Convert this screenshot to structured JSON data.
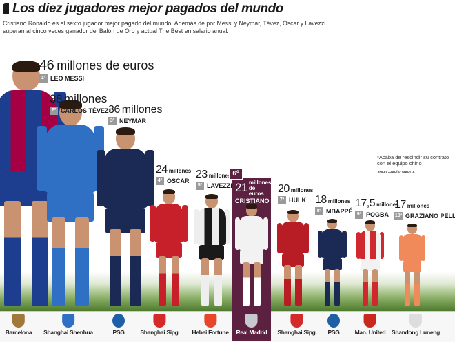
{
  "header": {
    "title": "Los diez jugadores mejor pagados del mundo",
    "intro": "Cristiano Ronaldo es el sexto jugador mejor pagado del mundo. Además de por Messi y Neymar, Tévez, Óscar y Lavezzi superan al cinco veces ganador del Balón de Oro y actual The Best en salario anual."
  },
  "note": "*Acaba de rescindir su contrato con el equipo chino",
  "credit": "INFOGRAFÍA: MARCA",
  "highlight_color": "#5c2140",
  "players": [
    {
      "rank": "1º",
      "value": "46",
      "unit": "millones de euros",
      "name": "LEO MESSI",
      "club": "Barcelona",
      "salary_millions_eur": 46,
      "kit": "#1d3d8f",
      "kit2": "#a50044",
      "club_color": "#a0783a"
    },
    {
      "rank": "2º",
      "value": "38",
      "unit": "millones",
      "name": "CARLOS TÉVEZ*",
      "club": "Shanghai Shenhua",
      "salary_millions_eur": 38,
      "kit": "#2f6fc4",
      "kit2": "#2f6fc4",
      "club_color": "#2f6fc4"
    },
    {
      "rank": "3º",
      "value": "36",
      "unit": "millones",
      "name": "NEYMAR",
      "club": "PSG",
      "salary_millions_eur": 36,
      "kit": "#1b2a55",
      "kit2": "#1b2a55",
      "club_color": "#1f5fa8"
    },
    {
      "rank": "4º",
      "value": "24",
      "unit": "millones",
      "name": "ÓSCAR",
      "club": "Shanghai Sipg",
      "salary_millions_eur": 24,
      "kit": "#c8202b",
      "kit2": "#c8202b",
      "club_color": "#d42a2a"
    },
    {
      "rank": "5º",
      "value": "23",
      "unit": "millones",
      "name": "LAVEZZI",
      "club": "Hebei Fortune",
      "salary_millions_eur": 23,
      "kit": "#eeeeee",
      "kit2": "#1a1a1a",
      "club_color": "#e8462a"
    },
    {
      "rank": "6º",
      "value": "21",
      "unit": "millones de euros",
      "name": "CRISTIANO",
      "club": "Real Madrid",
      "salary_millions_eur": 21,
      "kit": "#f2f2f2",
      "kit2": "#f2f2f2",
      "club_color": "#c8c8d0"
    },
    {
      "rank": "7º",
      "value": "20",
      "unit": "millones",
      "name": "HULK",
      "club": "Shanghai Sipg",
      "salary_millions_eur": 20,
      "kit": "#b81c24",
      "kit2": "#b81c24",
      "club_color": "#d42a2a"
    },
    {
      "rank": "8º",
      "value": "18",
      "unit": "millones",
      "name": "MBAPPÉ",
      "club": "PSG",
      "salary_millions_eur": 18,
      "kit": "#1b2a55",
      "kit2": "#1b2a55",
      "club_color": "#1f5fa8"
    },
    {
      "rank": "9º",
      "value": "17,5",
      "unit": "millones",
      "name": "POGBA",
      "club": "Man. United",
      "salary_millions_eur": 17.5,
      "kit": "#d0282e",
      "kit2": "#f2f2f2",
      "club_color": "#c8281e"
    },
    {
      "rank": "10º",
      "value": "17",
      "unit": "millones",
      "name": "GRAZIANO PELLÉ",
      "club": "Shandong Luneng",
      "salary_millions_eur": 17,
      "kit": "#f08a5a",
      "kit2": "#f08a5a",
      "club_color": "#dddddd"
    }
  ]
}
